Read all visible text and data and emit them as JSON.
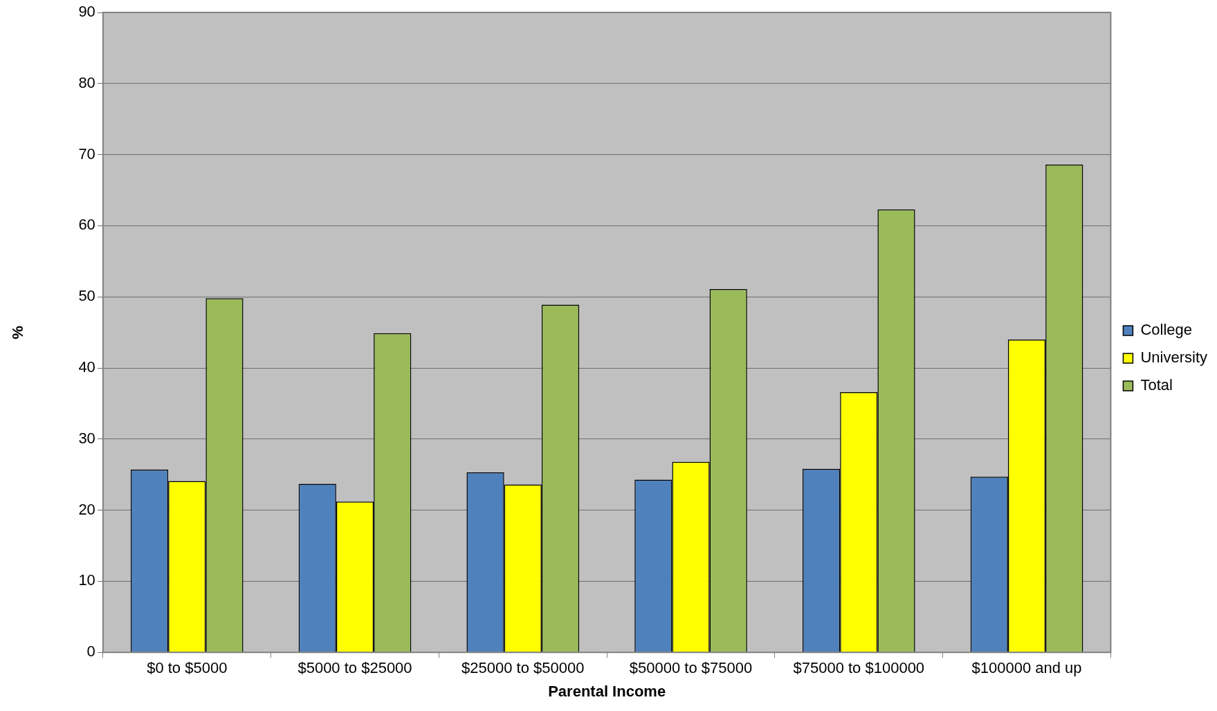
{
  "chart_data": {
    "type": "bar",
    "xlabel": "Parental Income",
    "ylabel": "%",
    "categories": [
      "$0 to $5000",
      "$5000 to $25000",
      "$25000 to $50000",
      "$50000 to $75000",
      "$75000 to $100000",
      "$100000 and up"
    ],
    "series": [
      {
        "name": "College",
        "color": "#4f81bd",
        "values": [
          25.7,
          23.7,
          25.3,
          24.3,
          25.8,
          24.7
        ]
      },
      {
        "name": "University",
        "color": "#ffff00",
        "values": [
          24.1,
          21.2,
          23.6,
          26.8,
          36.6,
          44.0
        ]
      },
      {
        "name": "Total",
        "color": "#9bbb59",
        "values": [
          49.8,
          44.9,
          48.9,
          51.1,
          62.3,
          68.6
        ]
      }
    ],
    "ylim": [
      0,
      90
    ],
    "yticks": [
      0,
      10,
      20,
      30,
      40,
      50,
      60,
      70,
      80,
      90
    ],
    "grid": "y",
    "legend": "right"
  }
}
